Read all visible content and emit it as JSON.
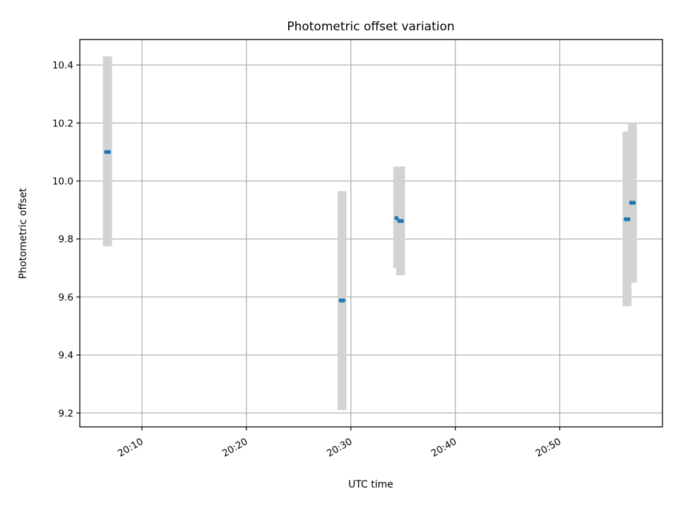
{
  "chart_data": {
    "type": "scatter",
    "title": "Photometric offset variation",
    "xlabel": "UTC time",
    "ylabel": "Photometric offset",
    "xlim": [
      "20:04:03",
      "20:59:50"
    ],
    "ylim": [
      9.152,
      10.488
    ],
    "grid": true,
    "xticks": [
      "20:10",
      "20:20",
      "20:30",
      "20:40",
      "20:50"
    ],
    "yticks": [
      "9.2",
      "9.4",
      "9.6",
      "9.8",
      "10.0",
      "10.2",
      "10.4"
    ],
    "error_bar_color": "#d3d3d3",
    "point_color": "#1f77b4",
    "series": [
      {
        "points": [
          {
            "x": "20:06:34",
            "y": 10.1,
            "yerr_low": 9.775,
            "yerr_high": 10.43
          },
          {
            "x": "20:06:50",
            "y": 10.1,
            "yerr_low": 9.775,
            "yerr_high": 10.43
          },
          {
            "x": "20:29:02",
            "y": 9.588,
            "yerr_low": 9.21,
            "yerr_high": 9.965
          },
          {
            "x": "20:29:17",
            "y": 9.588,
            "yerr_low": 9.21,
            "yerr_high": 9.965
          },
          {
            "x": "20:34:22",
            "y": 9.872,
            "yerr_low": 9.7,
            "yerr_high": 10.05
          },
          {
            "x": "20:34:38",
            "y": 9.862,
            "yerr_low": 9.675,
            "yerr_high": 10.05
          },
          {
            "x": "20:34:53",
            "y": 9.862,
            "yerr_low": 9.675,
            "yerr_high": 10.05
          },
          {
            "x": "20:56:19",
            "y": 9.868,
            "yerr_low": 9.568,
            "yerr_high": 10.17
          },
          {
            "x": "20:56:34",
            "y": 9.868,
            "yerr_low": 9.568,
            "yerr_high": 10.17
          },
          {
            "x": "20:56:50",
            "y": 9.925,
            "yerr_low": 9.65,
            "yerr_high": 10.2
          },
          {
            "x": "20:57:05",
            "y": 9.925,
            "yerr_low": 9.65,
            "yerr_high": 10.2
          }
        ]
      }
    ]
  }
}
